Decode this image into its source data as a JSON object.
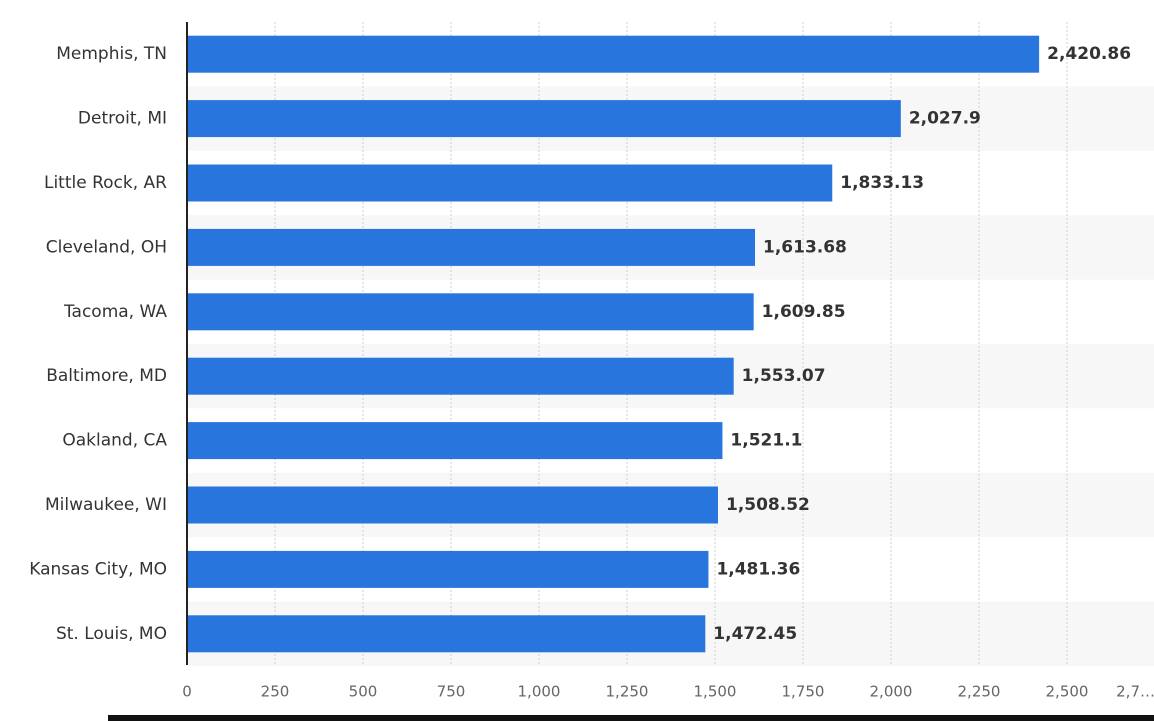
{
  "chart_data": {
    "type": "bar",
    "orientation": "horizontal",
    "categories": [
      "Memphis, TN",
      "Detroit, MI",
      "Little Rock, AR",
      "Cleveland, OH",
      "Tacoma, WA",
      "Baltimore, MD",
      "Oakland, CA",
      "Milwaukee, WI",
      "Kansas City, MO",
      "St. Louis, MO"
    ],
    "values": [
      2420.86,
      2027.9,
      1833.13,
      1613.68,
      1609.85,
      1553.07,
      1521.1,
      1508.52,
      1481.36,
      1472.45
    ],
    "value_labels": [
      "2,420.86",
      "2,027.9",
      "1,833.13",
      "1,613.68",
      "1,609.85",
      "1,553.07",
      "1,521.1",
      "1,508.52",
      "1,481.36",
      "1,472.45"
    ],
    "color": "#2876dd",
    "xlim": [
      0,
      2750
    ],
    "xticks": [
      0,
      250,
      500,
      750,
      {
        "value": 1000,
        "label": "1,000"
      },
      {
        "value": 1250,
        "label": "1,250"
      },
      {
        "value": 1500,
        "label": "1,500"
      },
      {
        "value": 1750,
        "label": "1,750"
      },
      {
        "value": 2000,
        "label": "2,000"
      },
      {
        "value": 2250,
        "label": "2,250"
      },
      {
        "value": 2500,
        "label": "2,500"
      },
      {
        "value": 2750,
        "label": "2,7…"
      }
    ],
    "grid": true
  }
}
